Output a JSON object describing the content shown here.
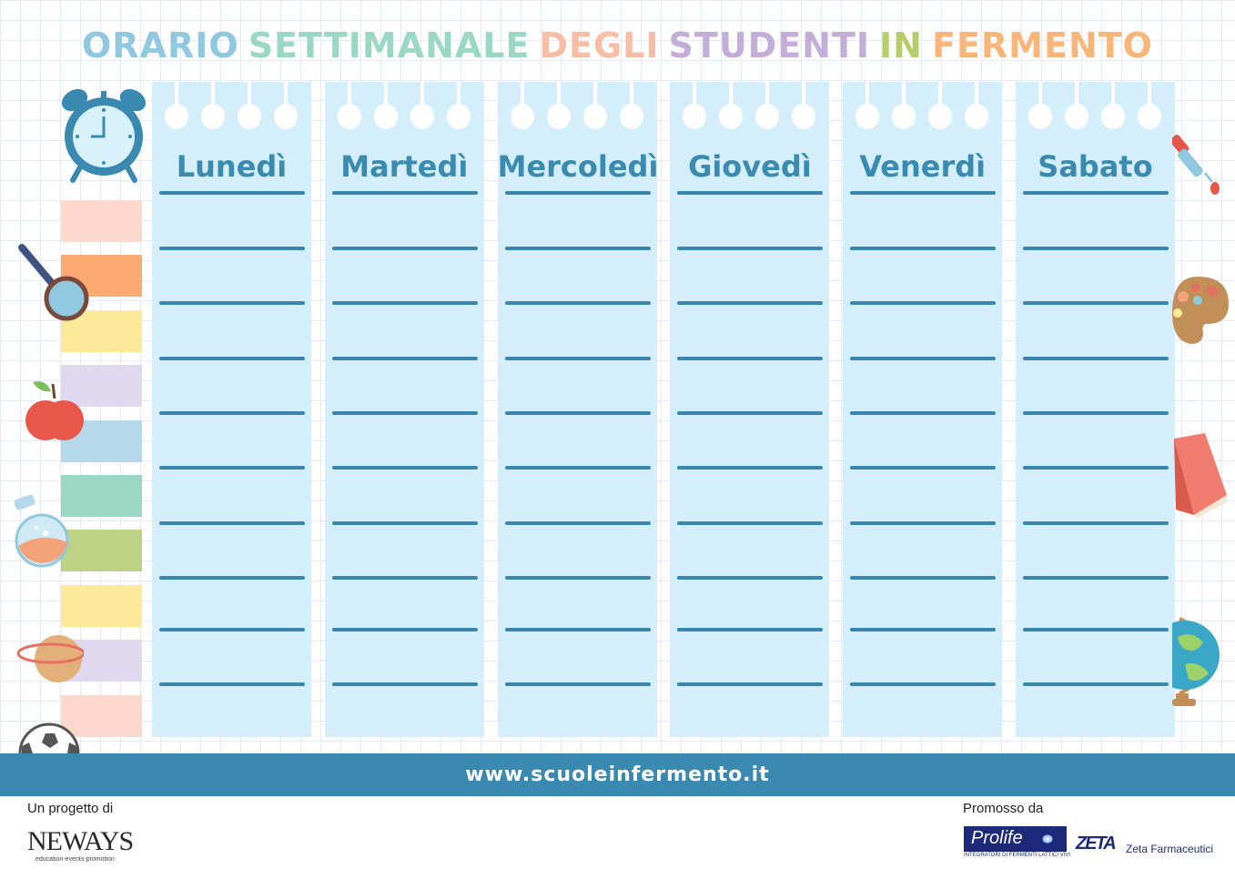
{
  "title": {
    "words": [
      {
        "text": "ORARIO",
        "color": "#8fc8df"
      },
      {
        "text": "SETTIMANALE",
        "color": "#9bd8c4"
      },
      {
        "text": "DEGLI",
        "color": "#f7bea5"
      },
      {
        "text": "STUDENTI",
        "color": "#c3aed8"
      },
      {
        "text": "IN",
        "color": "#b7cc6a"
      },
      {
        "text": "FERMENTO",
        "color": "#f8b67a"
      }
    ]
  },
  "days": [
    "Lunedì",
    "Martedì",
    "Mercoledì",
    "Giovedì",
    "Venerdì",
    "Sabato"
  ],
  "swatch_colors": [
    "#fdd8cd",
    "#fbab71",
    "#fde99a",
    "#dfd8ee",
    "#b5d9eb",
    "#9ad8c4",
    "#bcd386",
    "#fde99a",
    "#dfd8ee",
    "#fdd8cd"
  ],
  "footer": {
    "url": "www.scuoleinfermento.it",
    "project_label": "Un progetto di",
    "promoted_label": "Promosso da",
    "neways": {
      "name": "NEWAYS",
      "tagline": "education-events-promotion"
    },
    "prolife": {
      "name": "Prolife",
      "tagline": "INTEGRATORI DI FERMENTI LATTICI VIVI"
    },
    "zeta": {
      "mark": "ZETA",
      "name": "Zeta Farmaceutici"
    }
  },
  "decorations": [
    "alarm-clock-icon",
    "magnifier-icon",
    "apple-icon",
    "flask-icon",
    "planet-icon",
    "soccer-ball-icon",
    "dropper-icon",
    "palette-icon",
    "book-icon",
    "globe-icon"
  ]
}
